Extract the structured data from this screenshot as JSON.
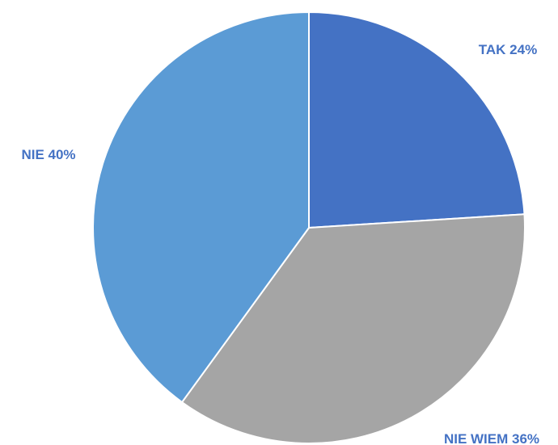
{
  "chart_data": {
    "type": "pie",
    "title": "",
    "legend": "none",
    "slices": [
      {
        "label": "TAK 24%",
        "value": 24,
        "color": "#4472c4",
        "label_color": "#4472c4"
      },
      {
        "label": "NIE WIEM 36%",
        "value": 36,
        "color": "#a5a5a5",
        "label_color": "#4472c4"
      },
      {
        "label": "NIE  40%",
        "value": 40,
        "color": "#5b9bd5",
        "label_color": "#4472c4"
      }
    ]
  }
}
